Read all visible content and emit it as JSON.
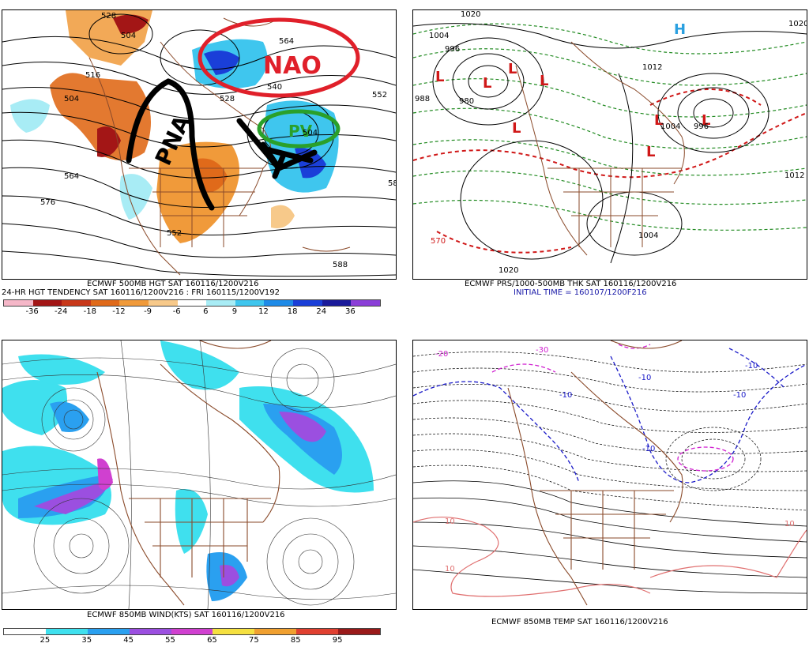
{
  "panels": {
    "top_left": {
      "caption_line1": "ECMWF 500MB HGT SAT 160116/1200V216",
      "caption_line2": "24-HR HGT TENDENCY SAT 160116/1200V216 : FRI 160115/1200V192",
      "colorbar_ticks": [
        "-36",
        "-24",
        "-18",
        "-12",
        "-9",
        "-6",
        "6",
        "9",
        "12",
        "18",
        "24",
        "36"
      ],
      "colorbar_colors": [
        "#f5b7c8",
        "#a31616",
        "#c8381a",
        "#e06a1a",
        "#f09a3a",
        "#f7c98a",
        "#ffffff",
        "#a8ecf5",
        "#3fc6ee",
        "#1e8be8",
        "#1a3fd8",
        "#1a1a9a",
        "#8b3fd8"
      ],
      "contour_labels": [
        "528",
        "504",
        "516",
        "504",
        "564",
        "540",
        "552",
        "528",
        "504",
        "564",
        "576",
        "552",
        "588",
        "58"
      ],
      "annotations": [
        "NAO",
        "PNA",
        "PV"
      ]
    },
    "top_right": {
      "caption_line1": "ECMWF PRS/1000-500MB THK SAT 160116/1200V216",
      "caption_line2": "INITIAL TIME = 160107/1200F216",
      "contour_labels": [
        "1020",
        "1004",
        "996",
        "988",
        "980",
        "1012",
        "1020",
        "1004",
        "996",
        "1012",
        "1004",
        "1020",
        "570"
      ],
      "pressure_centers": [
        "L",
        "L",
        "L",
        "L",
        "L",
        "L",
        "L",
        "L",
        "H"
      ]
    },
    "bottom_left": {
      "caption_line1": "ECMWF 850MB WIND(KTS) SAT 160116/1200V216",
      "colorbar_ticks": [
        "25",
        "35",
        "45",
        "55",
        "65",
        "75",
        "85",
        "95"
      ],
      "colorbar_colors": [
        "#ffffff",
        "#3fe0ee",
        "#2aa0f0",
        "#9b4fe0",
        "#d040d0",
        "#f5e040",
        "#f0a030",
        "#e04030",
        "#9a1a1a"
      ]
    },
    "bottom_right": {
      "caption_line1": "ECMWF 850MB TEMP SAT 160116/1200V216",
      "contour_labels": [
        "-20",
        "-30",
        "-10",
        "-10",
        "-10",
        "-10",
        "-10",
        "10",
        "10",
        "10"
      ]
    }
  },
  "colors": {
    "contour": "#000000",
    "coast": "#8a4a2a",
    "annot_red": "#e0202a",
    "annot_black": "#000000",
    "annot_green": "#2aa02a",
    "thickness_green": "#228b22",
    "thickness_red": "#d01818",
    "temp_blue": "#1a1ac8",
    "temp_pink": "#e07070",
    "temp_magenta": "#d020d0"
  }
}
